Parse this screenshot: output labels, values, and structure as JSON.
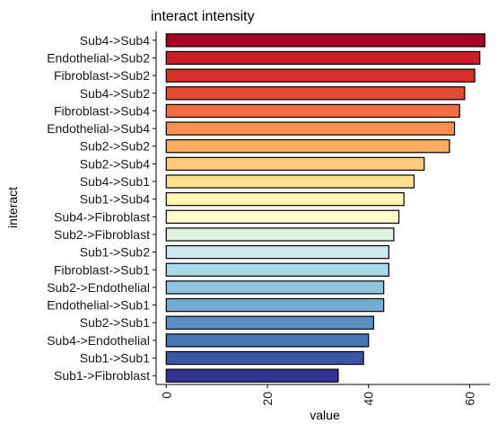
{
  "chart_data": {
    "type": "bar",
    "orientation": "horizontal",
    "title": "interact intensity",
    "xlabel": "value",
    "ylabel": "interact",
    "xlim": [
      -2,
      64
    ],
    "xticks": [
      0,
      20,
      40,
      60
    ],
    "grid": false,
    "legend": "none",
    "categories": [
      "Sub4->Sub4",
      "Endothelial->Sub2",
      "Fibroblast->Sub2",
      "Sub4->Sub2",
      "Fibroblast->Sub4",
      "Endothelial->Sub4",
      "Sub2->Sub2",
      "Sub2->Sub4",
      "Sub4->Sub1",
      "Sub1->Sub4",
      "Sub4->Fibroblast",
      "Sub2->Fibroblast",
      "Sub1->Sub2",
      "Fibroblast->Sub1",
      "Sub2->Endothelial",
      "Endothelial->Sub1",
      "Sub2->Sub1",
      "Sub4->Endothelial",
      "Sub1->Sub1",
      "Sub1->Fibroblast"
    ],
    "values": [
      63,
      62,
      61,
      59,
      58,
      57,
      56,
      51,
      49,
      47,
      46,
      45,
      44,
      44,
      43,
      43,
      41,
      40,
      39,
      34
    ],
    "colors": [
      "#a50026",
      "#c91e27",
      "#d73027",
      "#e34a33",
      "#f46d43",
      "#f8904f",
      "#fdae61",
      "#fecb7c",
      "#fee090",
      "#fff5b0",
      "#ffffcc",
      "#e0f3e0",
      "#cde8f0",
      "#abd9e9",
      "#8ec4de",
      "#74add1",
      "#5b8fc4",
      "#4575b4",
      "#3a56a5",
      "#313695"
    ]
  }
}
